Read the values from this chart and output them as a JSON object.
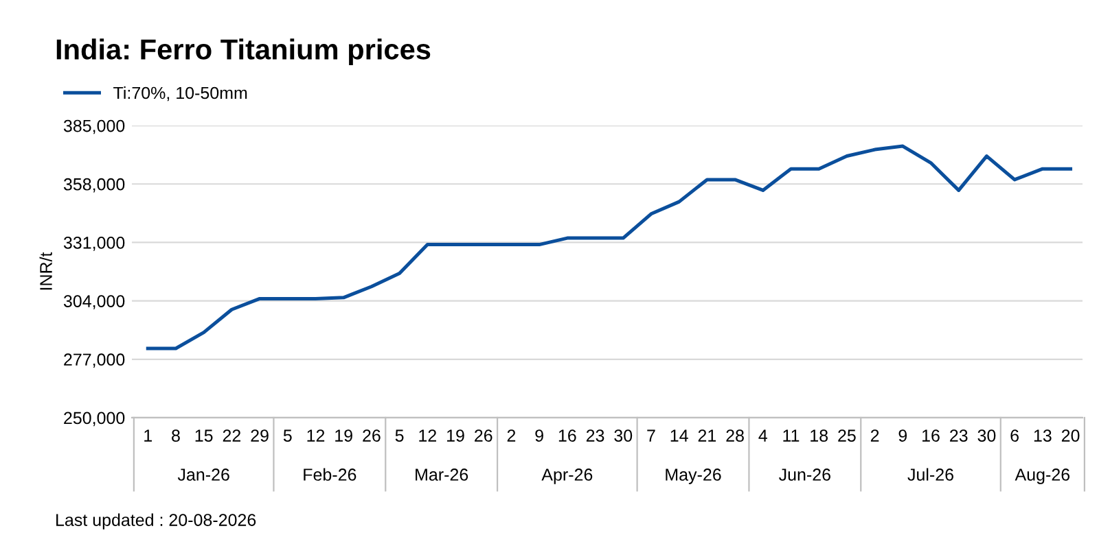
{
  "chart_data": {
    "type": "line",
    "title": "India: Ferro Titanium prices",
    "ylabel": "INR/t",
    "x": [
      "2026-01-01",
      "2026-01-08",
      "2026-01-15",
      "2026-01-22",
      "2026-01-29",
      "2026-02-05",
      "2026-02-12",
      "2026-02-19",
      "2026-02-26",
      "2026-03-05",
      "2026-03-12",
      "2026-03-19",
      "2026-03-26",
      "2026-04-02",
      "2026-04-09",
      "2026-04-16",
      "2026-04-23",
      "2026-04-30",
      "2026-05-07",
      "2026-05-14",
      "2026-05-21",
      "2026-05-28",
      "2026-06-04",
      "2026-06-11",
      "2026-06-18",
      "2026-06-25",
      "2026-07-02",
      "2026-07-09",
      "2026-07-16",
      "2026-07-23",
      "2026-07-30",
      "2026-08-06",
      "2026-08-13",
      "2026-08-20"
    ],
    "series": [
      {
        "name": "Ti:70%, 10-50mm",
        "color": "#0b4f9c",
        "values": [
          282000,
          282000,
          289400,
          300000,
          305000,
          305000,
          305000,
          305500,
          310600,
          316700,
          330000,
          330000,
          330000,
          330000,
          330000,
          333000,
          333000,
          333000,
          344200,
          349800,
          360000,
          360000,
          355100,
          365000,
          365000,
          370900,
          373900,
          375500,
          367800,
          355100,
          370900,
          360000,
          365000,
          365000
        ]
      }
    ],
    "xlim": [
      "2025-12-28",
      "2026-08-23"
    ],
    "xticks": [
      {
        "value": "2026-01-01",
        "label": "1"
      },
      {
        "value": "2026-01-08",
        "label": "8"
      },
      {
        "value": "2026-01-15",
        "label": "15"
      },
      {
        "value": "2026-01-22",
        "label": "22"
      },
      {
        "value": "2026-01-29",
        "label": "29"
      },
      {
        "value": "2026-02-05",
        "label": "5"
      },
      {
        "value": "2026-02-12",
        "label": "12"
      },
      {
        "value": "2026-02-19",
        "label": "19"
      },
      {
        "value": "2026-02-26",
        "label": "26"
      },
      {
        "value": "2026-03-05",
        "label": "5"
      },
      {
        "value": "2026-03-12",
        "label": "12"
      },
      {
        "value": "2026-03-19",
        "label": "19"
      },
      {
        "value": "2026-03-26",
        "label": "26"
      },
      {
        "value": "2026-04-02",
        "label": "2"
      },
      {
        "value": "2026-04-09",
        "label": "9"
      },
      {
        "value": "2026-04-16",
        "label": "16"
      },
      {
        "value": "2026-04-23",
        "label": "23"
      },
      {
        "value": "2026-04-30",
        "label": "30"
      },
      {
        "value": "2026-05-07",
        "label": "7"
      },
      {
        "value": "2026-05-14",
        "label": "14"
      },
      {
        "value": "2026-05-21",
        "label": "21"
      },
      {
        "value": "2026-05-28",
        "label": "28"
      },
      {
        "value": "2026-06-04",
        "label": "4"
      },
      {
        "value": "2026-06-11",
        "label": "11"
      },
      {
        "value": "2026-06-18",
        "label": "18"
      },
      {
        "value": "2026-06-25",
        "label": "25"
      },
      {
        "value": "2026-07-02",
        "label": "2"
      },
      {
        "value": "2026-07-09",
        "label": "9"
      },
      {
        "value": "2026-07-16",
        "label": "16"
      },
      {
        "value": "2026-07-23",
        "label": "23"
      },
      {
        "value": "2026-07-30",
        "label": "30"
      },
      {
        "value": "2026-08-06",
        "label": "6"
      },
      {
        "value": "2026-08-13",
        "label": "13"
      },
      {
        "value": "2026-08-20",
        "label": "20"
      }
    ],
    "ylim": [
      250000,
      385000
    ],
    "yticks": [
      {
        "value": 250000,
        "label": "250,000"
      },
      {
        "value": 277000,
        "label": "277,000"
      },
      {
        "value": 304000,
        "label": "304,000"
      },
      {
        "value": 331000,
        "label": "331,000"
      },
      {
        "value": 358000,
        "label": "358,000"
      },
      {
        "value": 385000,
        "label": "385,000"
      }
    ],
    "grid": "y",
    "legend": "top left",
    "marker": "none",
    "line_style": "solid",
    "annotations": [
      "Jan-26",
      "Feb-26",
      "Mar-26",
      "Apr-26",
      "May-26",
      "Jun-26",
      "Jul-26",
      "Aug-26",
      "Last updated : 20-08-2026"
    ]
  }
}
